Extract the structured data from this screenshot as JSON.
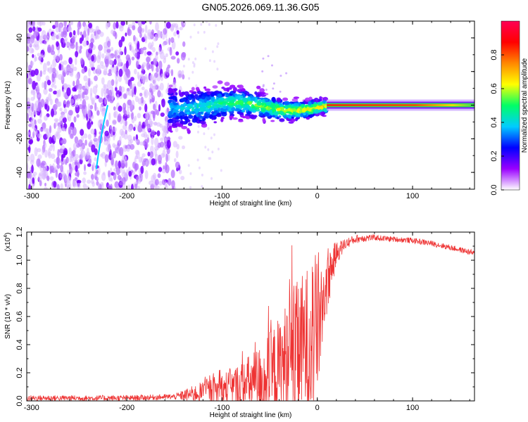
{
  "title": "GN05.2026.069.11.36.G05",
  "chart_data": [
    {
      "type": "heatmap",
      "name": "spectrogram",
      "xlabel": "Height of straight line (km)",
      "ylabel": "Frequency (Hz)",
      "xlim": [
        -305,
        165
      ],
      "ylim": [
        -50,
        50
      ],
      "xticks": [
        -300,
        -200,
        -100,
        0,
        100
      ],
      "xtick_labels": [
        "-300",
        "-200",
        "-100",
        "0",
        "100"
      ],
      "yticks": [
        -40,
        -20,
        0,
        20,
        40
      ],
      "ytick_labels": [
        "-40",
        "-20",
        "0",
        "20",
        "40"
      ],
      "colorbar": {
        "label": "Normalized spectral amplitude",
        "range": [
          0,
          1
        ],
        "ticks": [
          0.0,
          0.2,
          0.4,
          0.6,
          0.8
        ],
        "tick_labels": [
          "0.0",
          "0.2",
          "0.4",
          "0.6",
          "0.8"
        ],
        "colormap": [
          "#ffffff",
          "#9a00ff",
          "#0000ff",
          "#00ccff",
          "#00ff66",
          "#ffff00",
          "#ff8800",
          "#ff0000",
          "#ff0055"
        ]
      },
      "features": {
        "noise_region_x": [
          -305,
          -140
        ],
        "scatter_band_x": [
          -155,
          10
        ],
        "carrier_line": {
          "x_start": 10,
          "x_end": 165,
          "frequency_hz": 0,
          "amplitude": 0.9
        },
        "curved_trace": {
          "x": [
            -232,
            -230,
            -228,
            -226,
            -224,
            -222,
            -220
          ],
          "y": [
            -38,
            -30,
            -23,
            -16,
            -10,
            -5,
            0
          ]
        }
      }
    },
    {
      "type": "line",
      "name": "snr",
      "xlabel": "Height of straight line (km)",
      "ylabel": "SNR (10 * v/v)",
      "y_multiplier": "(x10",
      "y_multiplier_exp": "4",
      "y_multiplier_close": ")",
      "xlim": [
        -305,
        165
      ],
      "ylim": [
        0,
        1.2
      ],
      "xticks": [
        -300,
        -200,
        -100,
        0,
        100
      ],
      "xtick_labels": [
        "-300",
        "-200",
        "-100",
        "0",
        "100"
      ],
      "yticks": [
        0.0,
        0.2,
        0.4,
        0.6,
        0.8,
        1.0,
        1.2
      ],
      "ytick_labels": [
        "0.0",
        "0.2",
        "0.4",
        "0.6",
        "0.8",
        "1.0",
        "1.2"
      ],
      "color": "#ee3333",
      "envelope": {
        "x": [
          -305,
          -200,
          -150,
          -140,
          -120,
          -100,
          -80,
          -60,
          -50,
          -40,
          -30,
          -20,
          -10,
          0,
          10,
          20,
          30,
          40,
          50,
          60,
          80,
          100,
          120,
          140,
          165
        ],
        "base": [
          0.02,
          0.02,
          0.03,
          0.04,
          0.06,
          0.08,
          0.1,
          0.14,
          0.18,
          0.22,
          0.3,
          0.36,
          0.42,
          0.52,
          0.85,
          1.05,
          1.12,
          1.15,
          1.16,
          1.16,
          1.15,
          1.14,
          1.12,
          1.09,
          1.05
        ],
        "amp": [
          0.02,
          0.02,
          0.02,
          0.04,
          0.08,
          0.12,
          0.18,
          0.26,
          0.32,
          0.38,
          0.45,
          0.5,
          0.55,
          0.55,
          0.25,
          0.08,
          0.04,
          0.03,
          0.03,
          0.02,
          0.02,
          0.02,
          0.02,
          0.02,
          0.02
        ]
      }
    }
  ]
}
